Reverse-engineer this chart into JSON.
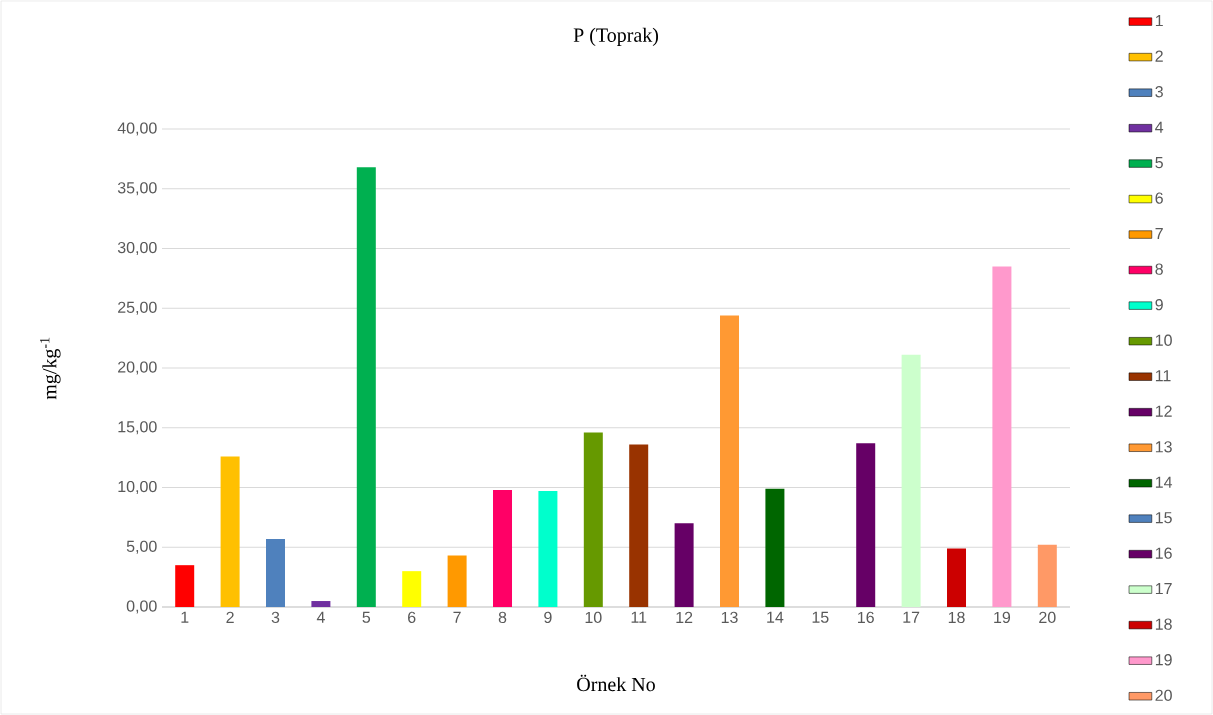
{
  "chart_data": {
    "type": "bar",
    "title": "P (Toprak)",
    "xlabel": "Örnek No",
    "ylabel": "mg/kg$^{-1}$",
    "categories": [
      "1",
      "2",
      "3",
      "4",
      "5",
      "6",
      "7",
      "8",
      "9",
      "10",
      "11",
      "12",
      "13",
      "14",
      "15",
      "16",
      "17",
      "18",
      "19",
      "20"
    ],
    "series": [
      {
        "name": "1",
        "color": "#ff0000",
        "values": [
          3.5,
          null,
          null,
          null,
          null,
          null,
          null,
          null,
          null,
          null,
          null,
          null,
          null,
          null,
          null,
          null,
          null,
          null,
          null,
          null
        ]
      },
      {
        "name": "2",
        "color": "#ffc000",
        "values": [
          null,
          12.6,
          null,
          null,
          null,
          null,
          null,
          null,
          null,
          null,
          null,
          null,
          null,
          null,
          null,
          null,
          null,
          null,
          null,
          null
        ]
      },
      {
        "name": "3",
        "color": "#4f81bd",
        "values": [
          null,
          null,
          5.7,
          null,
          null,
          null,
          null,
          null,
          null,
          null,
          null,
          null,
          null,
          null,
          null,
          null,
          null,
          null,
          null,
          null
        ]
      },
      {
        "name": "4",
        "color": "#7030a0",
        "values": [
          null,
          null,
          null,
          0.5,
          null,
          null,
          null,
          null,
          null,
          null,
          null,
          null,
          null,
          null,
          null,
          null,
          null,
          null,
          null,
          null
        ]
      },
      {
        "name": "5",
        "color": "#00b050",
        "values": [
          null,
          null,
          null,
          null,
          36.8,
          null,
          null,
          null,
          null,
          null,
          null,
          null,
          null,
          null,
          null,
          null,
          null,
          null,
          null,
          null
        ]
      },
      {
        "name": "6",
        "color": "#ffff00",
        "values": [
          null,
          null,
          null,
          null,
          null,
          3.0,
          null,
          null,
          null,
          null,
          null,
          null,
          null,
          null,
          null,
          null,
          null,
          null,
          null,
          null
        ]
      },
      {
        "name": "7",
        "color": "#ff9900",
        "values": [
          null,
          null,
          null,
          null,
          null,
          null,
          4.3,
          null,
          null,
          null,
          null,
          null,
          null,
          null,
          null,
          null,
          null,
          null,
          null,
          null
        ]
      },
      {
        "name": "8",
        "color": "#ff0066",
        "values": [
          null,
          null,
          null,
          null,
          null,
          null,
          null,
          9.8,
          null,
          null,
          null,
          null,
          null,
          null,
          null,
          null,
          null,
          null,
          null,
          null
        ]
      },
      {
        "name": "9",
        "color": "#00ffcc",
        "values": [
          null,
          null,
          null,
          null,
          null,
          null,
          null,
          null,
          9.7,
          null,
          null,
          null,
          null,
          null,
          null,
          null,
          null,
          null,
          null,
          null
        ]
      },
      {
        "name": "10",
        "color": "#669900",
        "values": [
          null,
          null,
          null,
          null,
          null,
          null,
          null,
          null,
          null,
          14.6,
          null,
          null,
          null,
          null,
          null,
          null,
          null,
          null,
          null,
          null
        ]
      },
      {
        "name": "11",
        "color": "#993300",
        "values": [
          null,
          null,
          null,
          null,
          null,
          null,
          null,
          null,
          null,
          null,
          13.6,
          null,
          null,
          null,
          null,
          null,
          null,
          null,
          null,
          null
        ]
      },
      {
        "name": "12",
        "color": "#660066",
        "values": [
          null,
          null,
          null,
          null,
          null,
          null,
          null,
          null,
          null,
          null,
          null,
          7.0,
          null,
          null,
          null,
          null,
          null,
          null,
          null,
          null
        ]
      },
      {
        "name": "13",
        "color": "#ff9933",
        "values": [
          null,
          null,
          null,
          null,
          null,
          null,
          null,
          null,
          null,
          null,
          null,
          null,
          24.4,
          null,
          null,
          null,
          null,
          null,
          null,
          null
        ]
      },
      {
        "name": "14",
        "color": "#006600",
        "values": [
          null,
          null,
          null,
          null,
          null,
          null,
          null,
          null,
          null,
          null,
          null,
          null,
          null,
          9.9,
          null,
          null,
          null,
          null,
          null,
          null
        ]
      },
      {
        "name": "15",
        "color": "#4f81bd",
        "values": [
          null,
          null,
          null,
          null,
          null,
          null,
          null,
          null,
          null,
          null,
          null,
          null,
          null,
          null,
          0,
          null,
          null,
          null,
          null,
          null
        ]
      },
      {
        "name": "16",
        "color": "#660066",
        "values": [
          null,
          null,
          null,
          null,
          null,
          null,
          null,
          null,
          null,
          null,
          null,
          null,
          null,
          null,
          null,
          13.7,
          null,
          null,
          null,
          null
        ]
      },
      {
        "name": "17",
        "color": "#ccffcc",
        "values": [
          null,
          null,
          null,
          null,
          null,
          null,
          null,
          null,
          null,
          null,
          null,
          null,
          null,
          null,
          null,
          null,
          21.1,
          null,
          null,
          null
        ]
      },
      {
        "name": "18",
        "color": "#cc0000",
        "values": [
          null,
          null,
          null,
          null,
          null,
          null,
          null,
          null,
          null,
          null,
          null,
          null,
          null,
          null,
          null,
          null,
          null,
          4.9,
          null,
          null
        ]
      },
      {
        "name": "19",
        "color": "#ff99cc",
        "values": [
          null,
          null,
          null,
          null,
          null,
          null,
          null,
          null,
          null,
          null,
          null,
          null,
          null,
          null,
          null,
          null,
          null,
          null,
          28.5,
          null
        ]
      },
      {
        "name": "20",
        "color": "#ff9966",
        "values": [
          null,
          null,
          null,
          null,
          null,
          null,
          null,
          null,
          null,
          null,
          null,
          null,
          null,
          null,
          null,
          null,
          null,
          null,
          null,
          5.2
        ]
      }
    ],
    "ylim": [
      0,
      40
    ],
    "yticks": [
      {
        "value": 0,
        "label": "0,00"
      },
      {
        "value": 5,
        "label": "5,00"
      },
      {
        "value": 10,
        "label": "10,00"
      },
      {
        "value": 15,
        "label": "15,00"
      },
      {
        "value": 20,
        "label": "20,00"
      },
      {
        "value": 25,
        "label": "25,00"
      },
      {
        "value": 30,
        "label": "30,00"
      },
      {
        "value": 35,
        "label": "35,00"
      },
      {
        "value": 40,
        "label": "40,00"
      }
    ],
    "grid": "y",
    "legend": "right"
  }
}
